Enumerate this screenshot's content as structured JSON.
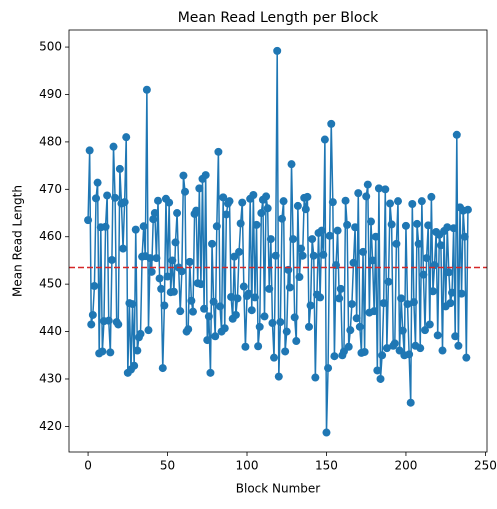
{
  "chart_data": {
    "type": "line",
    "title": "Mean Read Length per Block",
    "x_label": "Block Number",
    "y_label": "Mean Read Length",
    "x": [
      0,
      1,
      2,
      3,
      4,
      5,
      6,
      7,
      8,
      9,
      10,
      11,
      12,
      13,
      14,
      15,
      16,
      17,
      18,
      19,
      20,
      21,
      22,
      23,
      24,
      25,
      26,
      27,
      28,
      29,
      30,
      31,
      32,
      33,
      34,
      35,
      36,
      37,
      38,
      39,
      40,
      41,
      42,
      43,
      44,
      45,
      46,
      47,
      48,
      49,
      50,
      51,
      52,
      53,
      54,
      55,
      56,
      57,
      58,
      59,
      60,
      61,
      62,
      63,
      64,
      65,
      66,
      67,
      68,
      69,
      70,
      71,
      72,
      73,
      74,
      75,
      76,
      77,
      78,
      79,
      80,
      81,
      82,
      83,
      84,
      85,
      86,
      87,
      88,
      89,
      90,
      91,
      92,
      93,
      94,
      95,
      96,
      97,
      98,
      99,
      100,
      101,
      102,
      103,
      104,
      105,
      106,
      107,
      108,
      109,
      110,
      111,
      112,
      113,
      114,
      115,
      116,
      117,
      118,
      119,
      120,
      121,
      122,
      123,
      124,
      125,
      126,
      127,
      128,
      129,
      130,
      131,
      132,
      133,
      134,
      135,
      136,
      137,
      138,
      139,
      140,
      141,
      142,
      143,
      144,
      145,
      146,
      147,
      148,
      149,
      150,
      151,
      152,
      153,
      154,
      155,
      156,
      157,
      158,
      159,
      160,
      161,
      162,
      163,
      164,
      165,
      166,
      167,
      168,
      169,
      170,
      171,
      172,
      173,
      174,
      175,
      176,
      177,
      178,
      179,
      180,
      181,
      182,
      183,
      184,
      185,
      186,
      187,
      188,
      189,
      190,
      191,
      192,
      193,
      194,
      195,
      196,
      197,
      198,
      199,
      200,
      201,
      202,
      203,
      204,
      205,
      206,
      207,
      208,
      209,
      210,
      211,
      212,
      213,
      214,
      215,
      216,
      217,
      218,
      219,
      220,
      221,
      222,
      223,
      224,
      225,
      226,
      227,
      228,
      229,
      230,
      231,
      232,
      233,
      234,
      235,
      236,
      237,
      238,
      239
    ],
    "series": [
      {
        "color": "#1f77b4",
        "values": [
          463.5,
          478.2,
          441.5,
          443.5,
          449.6,
          468.1,
          471.4,
          435.4,
          462.0,
          435.8,
          442.2,
          462.1,
          468.7,
          442.3,
          435.6,
          455.1,
          479.0,
          468.2,
          442.0,
          441.5,
          474.3,
          467.0,
          457.5,
          467.3,
          481.0,
          431.3,
          446.0,
          432.0,
          445.8,
          432.8,
          461.5,
          436.0,
          438.8,
          439.5,
          455.8,
          462.2,
          455.9,
          491.0,
          440.3,
          455.5,
          452.6,
          463.7,
          465.0,
          455.5,
          467.6,
          451.2,
          449.0,
          432.3,
          445.5,
          468.0,
          451.6,
          467.2,
          448.3,
          455.0,
          448.4,
          458.8,
          465.0,
          453.5,
          444.3,
          452.7,
          472.9,
          469.5,
          440.0,
          440.5,
          454.7,
          446.5,
          444.2,
          464.8,
          465.5,
          450.2,
          470.2,
          450.0,
          472.2,
          444.8,
          473.0,
          438.2,
          443.2,
          431.3,
          458.5,
          446.3,
          439.0,
          462.2,
          477.9,
          445.3,
          440.0,
          468.3,
          440.7,
          464.7,
          467.0,
          467.5,
          447.3,
          442.7,
          455.8,
          443.5,
          447.0,
          456.8,
          462.8,
          467.2,
          449.5,
          436.8,
          447.5,
          448.0,
          468.0,
          444.5,
          468.8,
          447.2,
          462.5,
          436.9,
          441.0,
          465.0,
          467.8,
          443.2,
          468.5,
          466.0,
          449.0,
          459.5,
          441.8,
          434.5,
          456.0,
          499.2,
          430.5,
          442.0,
          463.8,
          467.5,
          435.8,
          440.0,
          453.0,
          449.3,
          475.3,
          459.5,
          443.0,
          438.0,
          466.5,
          451.5,
          457.5,
          456.0,
          468.2,
          465.8,
          468.4,
          441.0,
          445.5,
          459.5,
          456.0,
          430.3,
          447.8,
          460.8,
          447.2,
          461.3,
          456.2,
          480.5,
          418.7,
          432.3,
          460.2,
          483.8,
          467.3,
          434.8,
          454.0,
          461.3,
          447.0,
          449.0,
          435.0,
          435.8,
          467.6,
          462.5,
          436.8,
          440.3,
          445.8,
          454.5,
          462.0,
          442.8,
          469.2,
          441.0,
          435.5,
          456.8,
          435.7,
          468.5,
          471.0,
          444.0,
          463.2,
          455.0,
          444.3,
          460.0,
          431.8,
          470.2,
          430.0,
          435.0,
          446.0,
          470.0,
          436.5,
          450.5,
          467.0,
          462.6,
          437.0,
          437.5,
          458.5,
          467.5,
          436.0,
          447.0,
          440.2,
          435.0,
          462.3,
          445.8,
          435.2,
          425.0,
          466.9,
          446.2,
          437.0,
          462.7,
          458.5,
          436.5,
          467.5,
          452.0,
          440.3,
          455.5,
          462.4,
          441.5,
          468.4,
          448.5,
          454.0,
          461.0,
          439.2,
          460.4,
          458.2,
          436.0,
          461.2,
          445.3,
          462.0,
          452.5,
          446.0,
          448.2,
          461.8,
          439.0,
          481.5,
          437.0,
          466.2,
          448.0,
          465.5,
          460.0,
          434.5,
          465.7
        ]
      }
    ],
    "hline": {
      "value": 453.5,
      "color": "#d62728"
    },
    "xlim": [
      -12,
      251
    ],
    "xticks": [
      0,
      50,
      100,
      150,
      200,
      250
    ],
    "ylim": [
      414.6,
      503.6
    ],
    "yticks": [
      420,
      430,
      440,
      450,
      460,
      470,
      480,
      490,
      500
    ]
  }
}
